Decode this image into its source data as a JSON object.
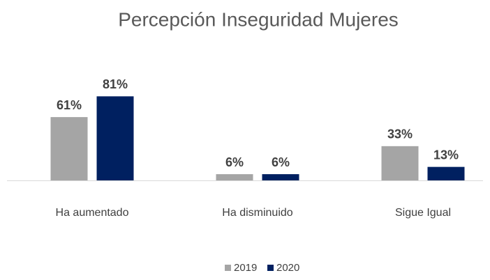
{
  "chart_data": {
    "type": "bar",
    "title": "Percepción Inseguridad Mujeres",
    "categories": [
      "Ha aumentado",
      "Ha disminuido",
      "Sigue Igual"
    ],
    "series": [
      {
        "name": "2019",
        "color": "#a5a5a5",
        "values": [
          61,
          6,
          33
        ],
        "value_labels": [
          "61%",
          "6%",
          "33%"
        ]
      },
      {
        "name": "2020",
        "color": "#002060",
        "values": [
          81,
          6,
          13
        ],
        "value_labels": [
          "81%",
          "6%",
          "13%"
        ]
      }
    ]
  }
}
